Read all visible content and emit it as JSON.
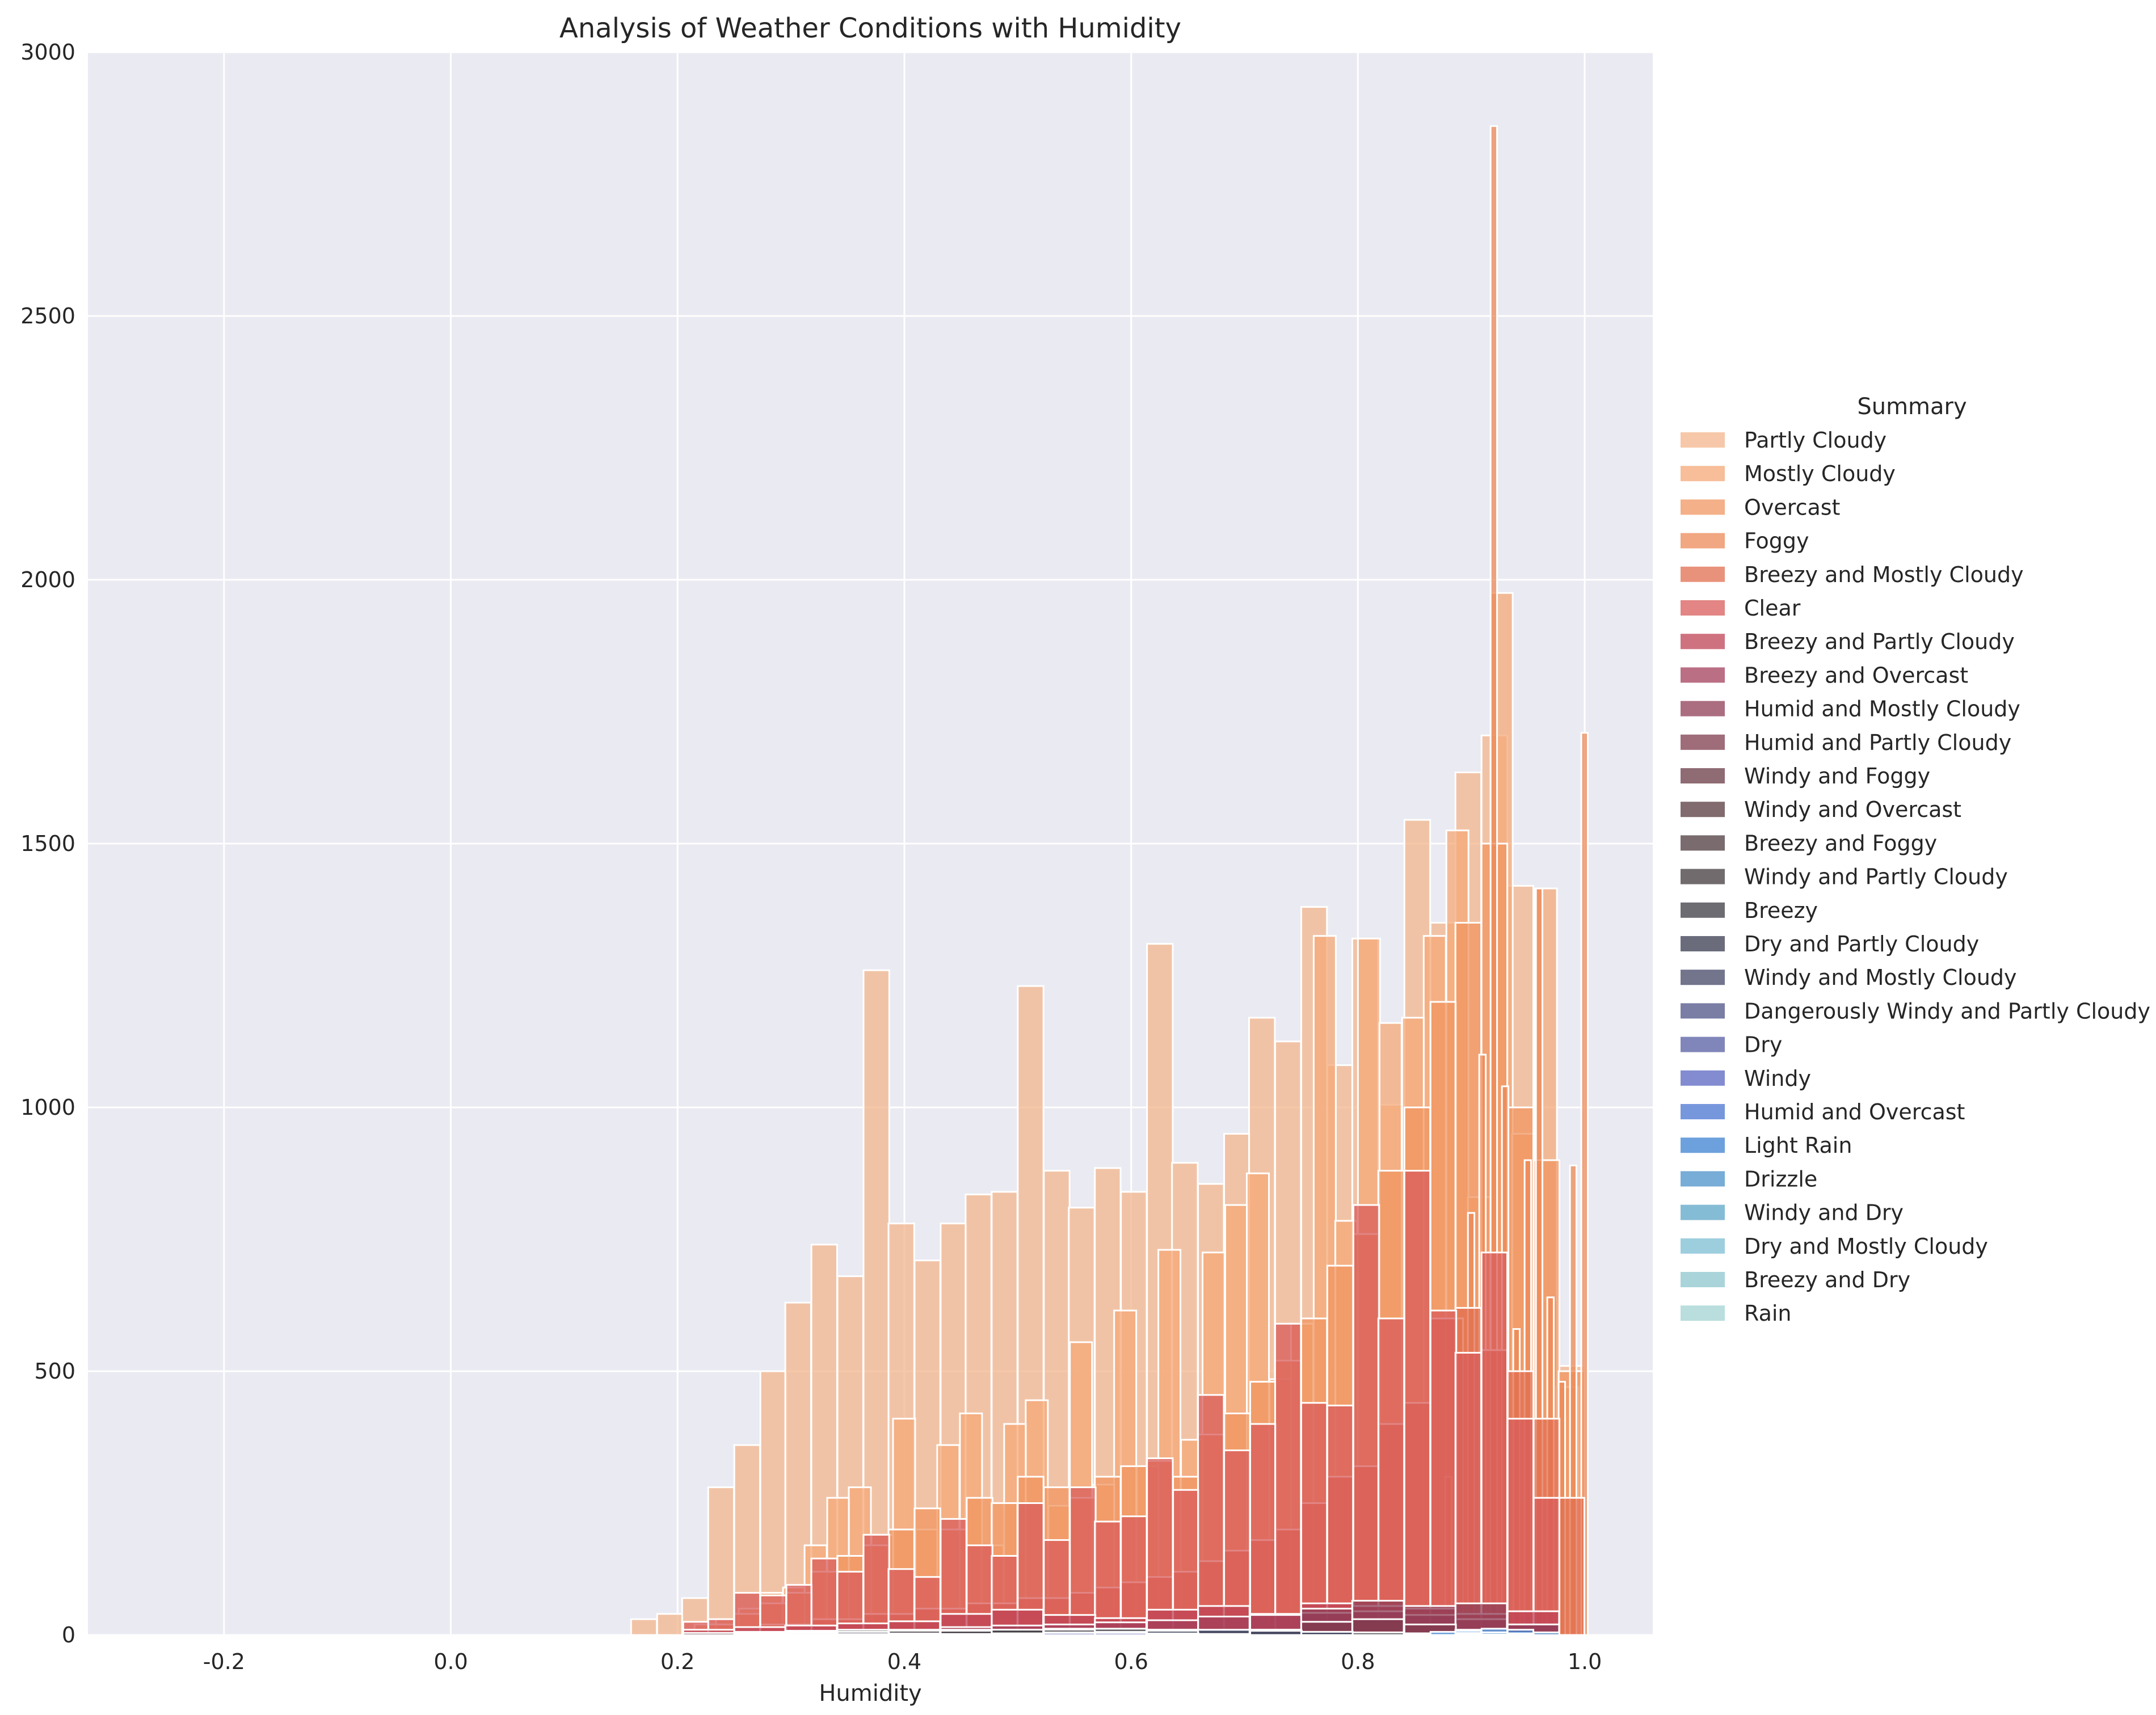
{
  "chart_data": {
    "type": "bar",
    "title": "Analysis of Weather Conditions with Humidity",
    "xlabel": "Humidity",
    "ylabel": "",
    "xlim": [
      -0.32,
      1.06
    ],
    "ylim": [
      0,
      3000
    ],
    "xticks": [
      -0.2,
      0.0,
      0.2,
      0.4,
      0.6,
      0.8,
      1.0
    ],
    "yticks": [
      0,
      500,
      1000,
      1500,
      2000,
      2500,
      3000
    ],
    "grid": true,
    "legend_title": "Summary",
    "legend_placement": "right",
    "series": [
      {
        "name": "Partly Cloudy",
        "color": "#f3b58c",
        "bin_width": 0.0227,
        "x": [
          0.159,
          0.182,
          0.204,
          0.227,
          0.25,
          0.273,
          0.295,
          0.318,
          0.341,
          0.364,
          0.386,
          0.409,
          0.432,
          0.454,
          0.477,
          0.5,
          0.523,
          0.545,
          0.568,
          0.591,
          0.614,
          0.636,
          0.659,
          0.682,
          0.704,
          0.727,
          0.75,
          0.773,
          0.795,
          0.818,
          0.841,
          0.864,
          0.886,
          0.909,
          0.932,
          0.954,
          0.977
        ],
        "values": [
          30,
          40,
          70,
          280,
          360,
          500,
          630,
          740,
          680,
          1260,
          780,
          710,
          780,
          835,
          840,
          1230,
          880,
          810,
          885,
          840,
          1310,
          895,
          855,
          950,
          1170,
          1125,
          1380,
          1080,
          1320,
          1005,
          1545,
          1350,
          1635,
          1705,
          1420,
          635,
          510
        ]
      },
      {
        "name": "Mostly Cloudy",
        "color": "#f4a877",
        "bin_width": 0.0195,
        "x": [
          0.215,
          0.234,
          0.254,
          0.273,
          0.293,
          0.312,
          0.332,
          0.351,
          0.371,
          0.39,
          0.41,
          0.429,
          0.449,
          0.468,
          0.488,
          0.507,
          0.527,
          0.546,
          0.566,
          0.585,
          0.605,
          0.624,
          0.644,
          0.663,
          0.683,
          0.702,
          0.722,
          0.741,
          0.761,
          0.78,
          0.8,
          0.819,
          0.839,
          0.858,
          0.878,
          0.897,
          0.917,
          0.936,
          0.956,
          0.975
        ],
        "values": [
          20,
          30,
          50,
          80,
          90,
          170,
          260,
          280,
          190,
          410,
          200,
          360,
          420,
          170,
          400,
          445,
          245,
          555,
          285,
          615,
          320,
          730,
          370,
          725,
          815,
          875,
          485,
          590,
          1325,
          785,
          1320,
          1160,
          1170,
          1325,
          1525,
          830,
          1975,
          950,
          1415,
          470
        ]
      },
      {
        "name": "Overcast",
        "color": "#f09560",
        "bin_width": 0.0227,
        "x": [
          0.205,
          0.227,
          0.25,
          0.273,
          0.296,
          0.318,
          0.341,
          0.364,
          0.386,
          0.409,
          0.432,
          0.455,
          0.477,
          0.5,
          0.523,
          0.546,
          0.568,
          0.591,
          0.614,
          0.637,
          0.659,
          0.682,
          0.705,
          0.727,
          0.75,
          0.773,
          0.796,
          0.818,
          0.841,
          0.864,
          0.886,
          0.909,
          0.932,
          0.955,
          0.977
        ],
        "values": [
          10,
          20,
          40,
          60,
          80,
          120,
          150,
          170,
          200,
          240,
          200,
          260,
          250,
          300,
          280,
          260,
          300,
          320,
          330,
          300,
          380,
          420,
          480,
          520,
          600,
          700,
          760,
          880,
          1000,
          1200,
          1350,
          1500,
          1000,
          900,
          500
        ]
      },
      {
        "name": "Foggy",
        "color": "#ec8a57",
        "bin_width": 0.0057,
        "x": [
          0.877,
          0.887,
          0.897,
          0.907,
          0.917,
          0.927,
          0.937,
          0.947,
          0.957,
          0.967,
          0.977,
          0.987,
          0.997
        ],
        "values": [
          300,
          600,
          800,
          1100,
          2860,
          1040,
          580,
          900,
          1415,
          640,
          480,
          890,
          1710
        ]
      },
      {
        "name": "Breezy and Mostly Cloudy",
        "color": "#e26d4f",
        "bin_width": 0.0227,
        "x": [
          0.25,
          0.273,
          0.296,
          0.318,
          0.341,
          0.364,
          0.386,
          0.409,
          0.432,
          0.455,
          0.477,
          0.5,
          0.523,
          0.546,
          0.568,
          0.591,
          0.614,
          0.637,
          0.659,
          0.682,
          0.705,
          0.727,
          0.75,
          0.773,
          0.796,
          0.818,
          0.841,
          0.864,
          0.886,
          0.909,
          0.932,
          0.955,
          0.977
        ],
        "values": [
          10,
          20,
          20,
          30,
          30,
          40,
          40,
          50,
          50,
          60,
          60,
          70,
          70,
          80,
          90,
          100,
          110,
          120,
          140,
          160,
          180,
          200,
          250,
          300,
          320,
          400,
          440,
          600,
          620,
          540,
          500,
          410,
          260
        ]
      },
      {
        "name": "Clear",
        "color": "#d85c5b",
        "bin_width": 0.0227,
        "x": [
          0.205,
          0.227,
          0.25,
          0.273,
          0.296,
          0.318,
          0.341,
          0.364,
          0.386,
          0.409,
          0.432,
          0.455,
          0.477,
          0.5,
          0.523,
          0.546,
          0.568,
          0.591,
          0.614,
          0.637,
          0.659,
          0.682,
          0.705,
          0.727,
          0.75,
          0.773,
          0.796,
          0.818,
          0.841,
          0.864,
          0.886,
          0.909,
          0.932,
          0.955
        ],
        "values": [
          25,
          30,
          80,
          75,
          95,
          145,
          120,
          190,
          125,
          110,
          220,
          170,
          150,
          250,
          180,
          280,
          215,
          225,
          335,
          275,
          455,
          350,
          400,
          590,
          440,
          435,
          815,
          600,
          880,
          615,
          535,
          725,
          410,
          260
        ]
      },
      {
        "name": "Breezy and Partly Cloudy",
        "color": "#bf4356",
        "bin_width": 0.0454,
        "x": [
          0.205,
          0.25,
          0.295,
          0.341,
          0.386,
          0.432,
          0.477,
          0.523,
          0.568,
          0.614,
          0.659,
          0.705,
          0.75,
          0.795,
          0.841,
          0.886,
          0.932
        ],
        "values": [
          10,
          15,
          18,
          22,
          26,
          40,
          48,
          38,
          32,
          48,
          55,
          40,
          60,
          55,
          50,
          40,
          45
        ]
      },
      {
        "name": "Breezy and Overcast",
        "color": "#a33f5c",
        "bin_width": 0.0454,
        "x": [
          0.295,
          0.341,
          0.386,
          0.432,
          0.477,
          0.523,
          0.568,
          0.614,
          0.659,
          0.705,
          0.75,
          0.795,
          0.841,
          0.886,
          0.932
        ],
        "values": [
          5,
          8,
          10,
          15,
          18,
          20,
          24,
          28,
          35,
          38,
          42,
          45,
          38,
          30,
          20
        ]
      },
      {
        "name": "Humid and Mostly Cloudy",
        "color": "#8f3d57",
        "bin_width": 0.0454,
        "x": [
          0.705,
          0.75,
          0.795,
          0.841,
          0.886,
          0.932
        ],
        "values": [
          10,
          50,
          65,
          55,
          60,
          20
        ]
      },
      {
        "name": "Humid and Partly Cloudy",
        "color": "#7f3b4e",
        "bin_width": 0.0454,
        "x": [
          0.659,
          0.705,
          0.75,
          0.795,
          0.841,
          0.886
        ],
        "values": [
          5,
          10,
          25,
          30,
          20,
          10
        ]
      },
      {
        "name": "Windy and Foggy",
        "color": "#6a3a45",
        "bin_width": 0.0454,
        "x": [
          0.841,
          0.886,
          0.932
        ],
        "values": [
          3,
          5,
          4
        ]
      },
      {
        "name": "Windy and Overcast",
        "color": "#57393f",
        "bin_width": 0.0454,
        "x": [
          0.432,
          0.477,
          0.523,
          0.568,
          0.614,
          0.659,
          0.705,
          0.75,
          0.795,
          0.841
        ],
        "values": [
          3,
          5,
          6,
          8,
          10,
          8,
          6,
          5,
          4,
          3
        ]
      },
      {
        "name": "Breezy and Foggy",
        "color": "#4c3a3d",
        "bin_width": 0.0454,
        "x": [
          0.841,
          0.886,
          0.932
        ],
        "values": [
          3,
          6,
          4
        ]
      },
      {
        "name": "Windy and Partly Cloudy",
        "color": "#423a3c",
        "bin_width": 0.0454,
        "x": [
          0.205,
          0.25,
          0.295,
          0.341,
          0.386,
          0.432,
          0.477,
          0.523,
          0.568,
          0.614,
          0.659,
          0.705,
          0.75,
          0.795
        ],
        "values": [
          4,
          6,
          8,
          10,
          8,
          10,
          10,
          12,
          10,
          9,
          8,
          6,
          5,
          4
        ]
      },
      {
        "name": "Breezy",
        "color": "#3b3b43",
        "bin_width": 0.0454,
        "x": [
          0.25,
          0.295,
          0.341,
          0.386,
          0.432,
          0.477,
          0.523,
          0.568,
          0.614,
          0.659,
          0.705,
          0.75,
          0.795
        ],
        "values": [
          3,
          5,
          6,
          8,
          8,
          10,
          10,
          12,
          10,
          9,
          8,
          6,
          5
        ]
      },
      {
        "name": "Dry and Partly Cloudy",
        "color": "#383b4f",
        "bin_width": 0.0454,
        "x": [
          0.295,
          0.341,
          0.386
        ],
        "values": [
          4,
          6,
          3
        ]
      },
      {
        "name": "Windy and Mostly Cloudy",
        "color": "#434765",
        "bin_width": 0.0454,
        "x": [
          0.477,
          0.523,
          0.568,
          0.614,
          0.659,
          0.705,
          0.75
        ],
        "values": [
          3,
          5,
          6,
          8,
          10,
          8,
          6
        ]
      },
      {
        "name": "Dangerously Windy and Partly Cloudy",
        "color": "#4e5387",
        "bin_width": 0.0454,
        "x": [
          0.386
        ],
        "values": [
          1
        ]
      },
      {
        "name": "Dry",
        "color": "#565ea1",
        "bin_width": 0.0454,
        "x": [
          0.25,
          0.295,
          0.341
        ],
        "values": [
          3,
          4,
          2
        ]
      },
      {
        "name": "Windy",
        "color": "#5a66c0",
        "bin_width": 0.0454,
        "x": [
          0.432,
          0.477,
          0.523,
          0.568,
          0.614,
          0.659
        ],
        "values": [
          2,
          3,
          4,
          4,
          3,
          2
        ]
      },
      {
        "name": "Humid and Overcast",
        "color": "#4a74d1",
        "bin_width": 0.0454,
        "x": [
          0.841,
          0.886
        ],
        "values": [
          3,
          4
        ]
      },
      {
        "name": "Light Rain",
        "color": "#3c82d2",
        "bin_width": 0.0227,
        "x": [
          0.841,
          0.864,
          0.886,
          0.909,
          0.932,
          0.955
        ],
        "values": [
          3,
          6,
          8,
          12,
          10,
          5
        ]
      },
      {
        "name": "Drizzle",
        "color": "#4a91c8",
        "bin_width": 0.0227,
        "x": [
          0.886,
          0.909,
          0.932
        ],
        "values": [
          4,
          5,
          3
        ]
      },
      {
        "name": "Windy and Dry",
        "color": "#5ca5c7",
        "bin_width": 0.0454,
        "x": [
          0.25
        ],
        "values": [
          1
        ]
      },
      {
        "name": "Dry and Mostly Cloudy",
        "color": "#7cbdd3",
        "bin_width": 0.0454,
        "x": [
          0.341
        ],
        "values": [
          1
        ]
      },
      {
        "name": "Breezy and Dry",
        "color": "#8cc5cd",
        "bin_width": 0.0454,
        "x": [
          0.295
        ],
        "values": [
          1
        ]
      },
      {
        "name": "Rain",
        "color": "#a2d3d2",
        "bin_width": 0.0454,
        "x": [
          0.886
        ],
        "values": [
          1
        ]
      }
    ]
  }
}
